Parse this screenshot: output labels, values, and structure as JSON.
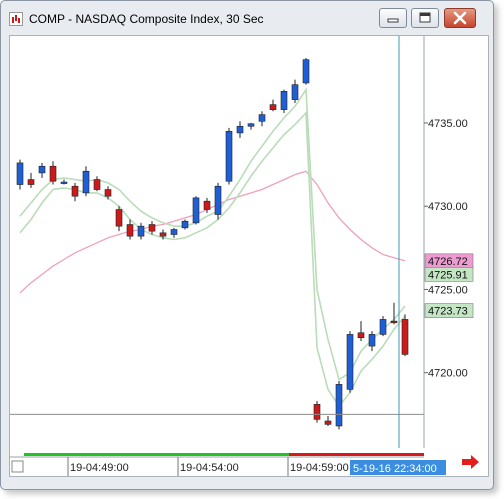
{
  "window": {
    "title": "COMP - NASDAQ Composite Index, 30 Sec",
    "icon": "chart-app-icon"
  },
  "title_buttons": [
    "minimize-icon",
    "maximize-icon",
    "close-icon"
  ],
  "colors": {
    "up_candle": "#1f5fd6",
    "down_candle": "#cc1a1a",
    "band_line": "#b9dcb9",
    "ma_line": "#f0a0b8",
    "cursor_line": "#3a9bb5",
    "price_tag_pink": "#ee9ad2",
    "price_tag_green": "#c5e6c5",
    "time_tag_bg": "#3b8de0",
    "arrow": "#e41d1d"
  },
  "price_axis": {
    "ticks": [
      "4735.00",
      "4730.00",
      "4725.00",
      "4720.00"
    ],
    "tags": [
      {
        "label": "4726.72",
        "kind": "pink"
      },
      {
        "label": "4725.91",
        "kind": "green"
      },
      {
        "label": "4723.73",
        "kind": "green"
      }
    ]
  },
  "time_axis": {
    "ticks": [
      "19-04:49:00",
      "19-04:54:00",
      "19-04:59:00"
    ],
    "cursor_label": "5-19-16 22:34:00"
  },
  "chart_data": {
    "type": "candlestick",
    "ylim": [
      4716.5,
      4739.5
    ],
    "yticks": [
      4735,
      4730,
      4725,
      4720
    ],
    "candles": [
      {
        "o": 4731.3,
        "h": 4732.8,
        "l": 4731.0,
        "c": 4732.6
      },
      {
        "o": 4731.6,
        "h": 4732.0,
        "l": 4731.1,
        "c": 4731.3
      },
      {
        "o": 4732.0,
        "h": 4732.6,
        "l": 4731.7,
        "c": 4732.4
      },
      {
        "o": 4732.4,
        "h": 4732.7,
        "l": 4731.3,
        "c": 4731.5
      },
      {
        "o": 4731.4,
        "h": 4731.6,
        "l": 4731.3,
        "c": 4731.45
      },
      {
        "o": 4731.2,
        "h": 4731.4,
        "l": 4730.3,
        "c": 4730.6
      },
      {
        "o": 4730.8,
        "h": 4732.4,
        "l": 4730.6,
        "c": 4732.1
      },
      {
        "o": 4731.6,
        "h": 4731.8,
        "l": 4730.9,
        "c": 4731.0
      },
      {
        "o": 4731.0,
        "h": 4731.2,
        "l": 4730.4,
        "c": 4730.6
      },
      {
        "o": 4729.8,
        "h": 4730.0,
        "l": 4728.5,
        "c": 4728.8
      },
      {
        "o": 4728.9,
        "h": 4729.2,
        "l": 4728.0,
        "c": 4728.2
      },
      {
        "o": 4728.2,
        "h": 4729.0,
        "l": 4728.0,
        "c": 4728.8
      },
      {
        "o": 4728.9,
        "h": 4729.1,
        "l": 4728.3,
        "c": 4728.5
      },
      {
        "o": 4728.4,
        "h": 4728.6,
        "l": 4728.0,
        "c": 4728.2
      },
      {
        "o": 4728.3,
        "h": 4728.7,
        "l": 4728.1,
        "c": 4728.6
      },
      {
        "o": 4728.7,
        "h": 4729.2,
        "l": 4728.6,
        "c": 4729.1
      },
      {
        "o": 4729.0,
        "h": 4730.6,
        "l": 4728.9,
        "c": 4730.5
      },
      {
        "o": 4730.3,
        "h": 4730.5,
        "l": 4729.6,
        "c": 4729.8
      },
      {
        "o": 4729.5,
        "h": 4731.4,
        "l": 4729.2,
        "c": 4731.2
      },
      {
        "o": 4731.5,
        "h": 4734.7,
        "l": 4731.3,
        "c": 4734.5
      },
      {
        "o": 4734.4,
        "h": 4735.1,
        "l": 4734.1,
        "c": 4734.8
      },
      {
        "o": 4734.8,
        "h": 4735.0,
        "l": 4734.6,
        "c": 4734.95
      },
      {
        "o": 4735.1,
        "h": 4735.7,
        "l": 4734.8,
        "c": 4735.5
      },
      {
        "o": 4736.1,
        "h": 4736.4,
        "l": 4735.7,
        "c": 4735.8
      },
      {
        "o": 4735.8,
        "h": 4737.0,
        "l": 4735.6,
        "c": 4736.9
      },
      {
        "o": 4736.4,
        "h": 4737.6,
        "l": 4736.2,
        "c": 4737.3
      },
      {
        "o": 4737.4,
        "h": 4738.9,
        "l": 4737.3,
        "c": 4738.8
      },
      {
        "o": 4718.1,
        "h": 4718.3,
        "l": 4717.0,
        "c": 4717.2
      },
      {
        "o": 4717.1,
        "h": 4717.4,
        "l": 4716.8,
        "c": 4716.9
      },
      {
        "o": 4716.8,
        "h": 4719.5,
        "l": 4716.6,
        "c": 4719.3
      },
      {
        "o": 4719.0,
        "h": 4722.5,
        "l": 4718.8,
        "c": 4722.3
      },
      {
        "o": 4722.4,
        "h": 4723.1,
        "l": 4721.9,
        "c": 4722.1
      },
      {
        "o": 4721.6,
        "h": 4722.5,
        "l": 4721.3,
        "c": 4722.3
      },
      {
        "o": 4722.3,
        "h": 4723.4,
        "l": 4722.2,
        "c": 4723.2
      },
      {
        "o": 4723.1,
        "h": 4724.2,
        "l": 4722.9,
        "c": 4723.0
      },
      {
        "o": 4723.2,
        "h": 4723.5,
        "l": 4721.0,
        "c": 4721.1
      }
    ],
    "band_upper": [
      4729.4,
      4730.2,
      4731.0,
      4731.6,
      4731.7,
      4731.6,
      4731.5,
      4731.6,
      4731.4,
      4731.0,
      4730.3,
      4729.7,
      4729.3,
      4729.0,
      4728.8,
      4728.8,
      4729.0,
      4729.4,
      4729.7,
      4730.6,
      4731.6,
      4732.7,
      4733.6,
      4734.5,
      4735.3,
      4736.0,
      4737.0,
      4725.0,
      4722.0,
      4719.6,
      4720.0,
      4721.3,
      4722.0,
      4722.6,
      4723.2,
      4724.0
    ],
    "band_lower": [
      4728.4,
      4729.2,
      4730.2,
      4731.0,
      4731.1,
      4731.0,
      4730.8,
      4730.8,
      4730.5,
      4730.0,
      4729.2,
      4728.6,
      4728.3,
      4728.1,
      4728.0,
      4728.1,
      4728.4,
      4728.7,
      4729.2,
      4729.9,
      4730.8,
      4731.8,
      4732.7,
      4733.5,
      4734.3,
      4734.9,
      4735.6,
      4721.5,
      4719.0,
      4718.0,
      4718.8,
      4720.1,
      4720.8,
      4721.6,
      4722.6,
      4723.4
    ],
    "ma": [
      4724.8,
      4725.4,
      4725.9,
      4726.4,
      4726.8,
      4727.2,
      4727.5,
      4727.8,
      4728.1,
      4728.3,
      4728.5,
      4728.6,
      4728.8,
      4728.9,
      4729.1,
      4729.3,
      4729.5,
      4729.8,
      4730.1,
      4730.4,
      4730.6,
      4730.8,
      4731.0,
      4731.3,
      4731.6,
      4731.9,
      4732.1,
      4731.3,
      4730.2,
      4729.3,
      4728.6,
      4728.0,
      4727.5,
      4727.1,
      4726.9,
      4726.72
    ]
  }
}
